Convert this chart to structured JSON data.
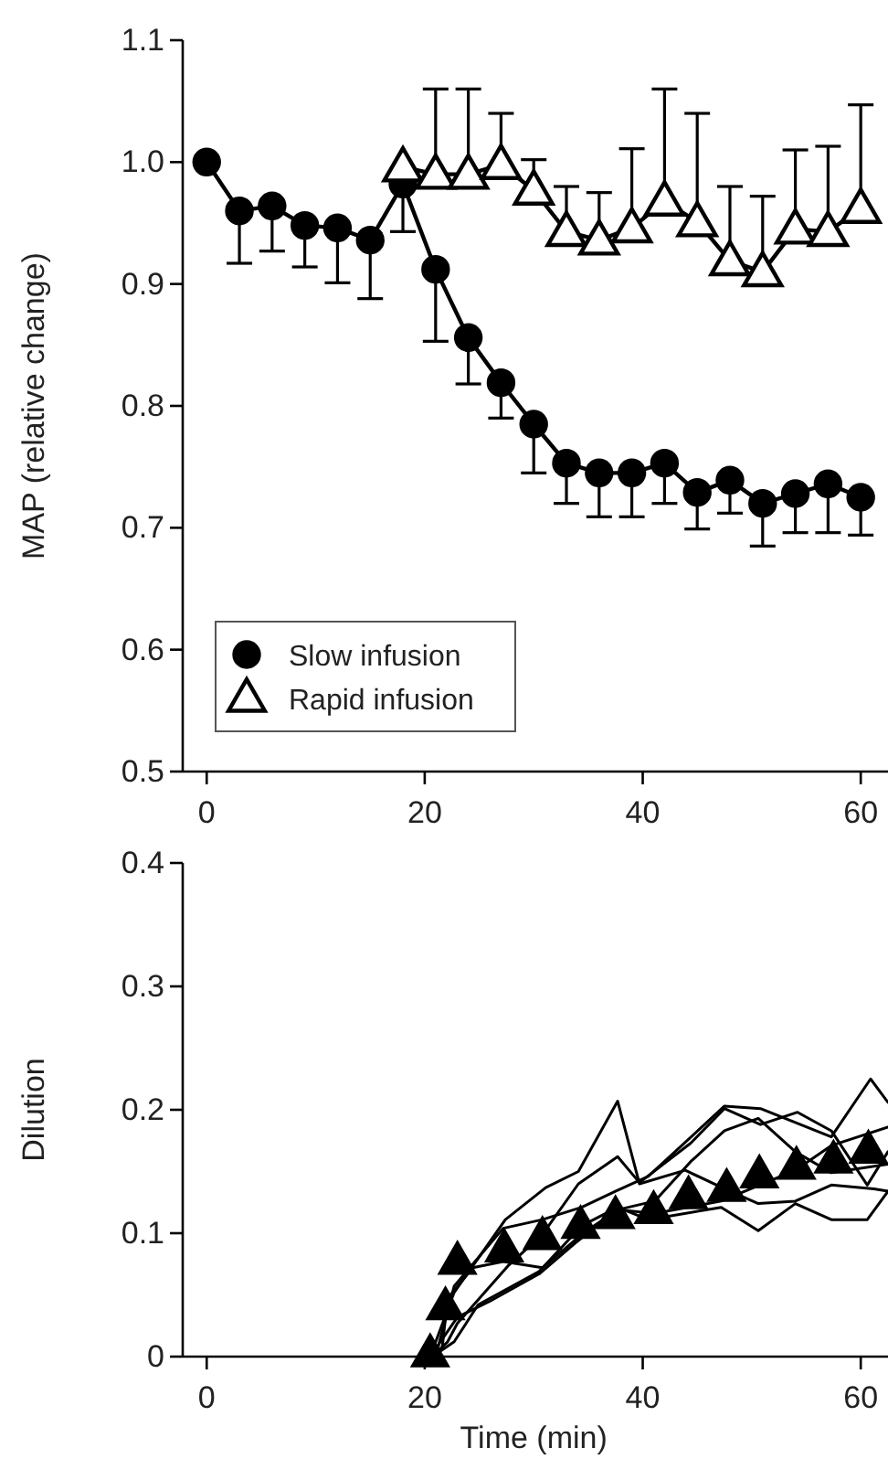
{
  "chart_data": [
    {
      "type": "line",
      "ylabel": "MAP (relative change)",
      "xlim": [
        -2.2,
        62.5
      ],
      "xticks": [
        0,
        20,
        40,
        60
      ],
      "ylim": [
        0.5,
        1.1
      ],
      "yticks": [
        {
          "value": 0.5,
          "label": "0.5"
        },
        {
          "value": 0.6,
          "label": "0.6"
        },
        {
          "value": 0.7,
          "label": "0.7"
        },
        {
          "value": 0.8,
          "label": "0.8"
        },
        {
          "value": 0.9,
          "label": "0.9"
        },
        {
          "value": 1.0,
          "label": "1.0"
        },
        {
          "value": 1.1,
          "label": "1.1"
        }
      ],
      "legend": "bottom left",
      "grid": false,
      "series": [
        {
          "name": "Slow infusion",
          "color": "#000000",
          "marker": "circle",
          "x": [
            0,
            3,
            6,
            9,
            12,
            15,
            18,
            21,
            24,
            27,
            30,
            33,
            36,
            39,
            42,
            45,
            48,
            51,
            54,
            57,
            60
          ],
          "values": [
            1.0,
            0.96,
            0.964,
            0.948,
            0.946,
            0.936,
            0.982,
            0.912,
            0.856,
            0.819,
            0.785,
            0.753,
            0.745,
            0.745,
            0.753,
            0.729,
            0.739,
            0.72,
            0.728,
            0.736,
            0.725
          ],
          "errors": [
            null,
            [
              0.917,
              0.96
            ],
            [
              0.927,
              0.964
            ],
            [
              0.914,
              0.948
            ],
            [
              0.901,
              0.946
            ],
            [
              0.888,
              0.936
            ],
            [
              0.943,
              0.982
            ],
            [
              0.853,
              0.912
            ],
            [
              0.818,
              0.856
            ],
            [
              0.79,
              0.819
            ],
            [
              0.745,
              0.785
            ],
            [
              0.72,
              0.753
            ],
            [
              0.709,
              0.745
            ],
            [
              0.709,
              0.745
            ],
            [
              0.72,
              0.753
            ],
            [
              0.699,
              0.729
            ],
            [
              0.712,
              0.739
            ],
            [
              0.685,
              0.72
            ],
            [
              0.696,
              0.728
            ],
            [
              0.696,
              0.736
            ],
            [
              0.694,
              0.725
            ]
          ]
        },
        {
          "name": "Rapid infusion",
          "color": "#000000",
          "marker": "triangle",
          "x": [
            18,
            21,
            24,
            27,
            30,
            33,
            36,
            39,
            42,
            45,
            48,
            51,
            54,
            57,
            60
          ],
          "values": [
            0.996,
            0.99,
            0.99,
            0.998,
            0.977,
            0.943,
            0.936,
            0.946,
            0.968,
            0.951,
            0.919,
            0.91,
            0.945,
            0.943,
            0.962
          ],
          "errors": [
            null,
            [
              0.99,
              1.06
            ],
            [
              0.99,
              1.06
            ],
            [
              0.998,
              1.04
            ],
            [
              0.977,
              1.002
            ],
            [
              0.943,
              0.98
            ],
            [
              0.936,
              0.975
            ],
            [
              0.946,
              1.011
            ],
            [
              0.968,
              1.06
            ],
            [
              0.951,
              1.04
            ],
            [
              0.919,
              0.98
            ],
            [
              0.91,
              0.972
            ],
            [
              0.945,
              1.01
            ],
            [
              0.943,
              1.013
            ],
            [
              0.962,
              1.047
            ]
          ]
        }
      ]
    },
    {
      "type": "line",
      "ylabel": "Dilution",
      "xlabel": "Time (min)",
      "xlim": [
        -2.2,
        62.5
      ],
      "xticks": [
        0,
        20,
        40,
        60
      ],
      "ylim": [
        0,
        0.4
      ],
      "yticks": [
        0,
        0.1,
        0.2,
        0.3,
        0.4
      ],
      "legend": false,
      "grid": false,
      "series": [
        {
          "color": "#000000",
          "marker": "none",
          "x": [
            20.5,
            22.7,
            27.4,
            31.1,
            34.1,
            37.7,
            39.7,
            43.9,
            47.5,
            50.6,
            54.0,
            57.3,
            61.2,
            62.5
          ],
          "values": [
            0,
            0.052,
            0.111,
            0.137,
            0.15,
            0.207,
            0.14,
            0.151,
            0.136,
            0.124,
            0.126,
            0.139,
            0.136,
            0.134
          ]
        },
        {
          "color": "#000000",
          "marker": "none",
          "x": [
            20.7,
            22.1,
            23.0,
            27.7,
            30.8,
            34.1,
            37.7,
            39.7,
            44.4,
            47.5,
            50.8,
            54.2,
            57.3,
            60.6,
            62.5
          ],
          "values": [
            0,
            0.012,
            0.027,
            0.074,
            0.099,
            0.14,
            0.162,
            0.141,
            0.173,
            0.201,
            0.188,
            0.198,
            0.183,
            0.139,
            0.166
          ]
        },
        {
          "color": "#000000",
          "marker": "none",
          "x": [
            21.0,
            22.7,
            27.2,
            30.8,
            34.4,
            37.5,
            40.5,
            47.5,
            50.8,
            57.3,
            60.9,
            62.5
          ],
          "values": [
            0,
            0.057,
            0.104,
            0.111,
            0.121,
            0.134,
            0.146,
            0.203,
            0.201,
            0.178,
            0.225,
            0.206
          ]
        },
        {
          "color": "#000000",
          "marker": "none",
          "x": [
            20.7,
            22.7,
            24.9,
            30.5,
            34.4,
            37.7,
            40.5,
            47.2,
            50.6,
            54.0,
            57.3,
            60.6,
            62.5
          ],
          "values": [
            0,
            0.012,
            0.042,
            0.069,
            0.106,
            0.121,
            0.111,
            0.121,
            0.102,
            0.124,
            0.111,
            0.111,
            0.134
          ]
        },
        {
          "color": "#000000",
          "marker": "none",
          "x": [
            20.5,
            23.0,
            26.0,
            30.5,
            33.8,
            37.7,
            41.1,
            44.4,
            47.5,
            50.6,
            54.0,
            57.3,
            62.5
          ],
          "values": [
            0,
            0.032,
            0.045,
            0.067,
            0.092,
            0.119,
            0.126,
            0.158,
            0.183,
            0.193,
            0.166,
            0.149,
            0.156
          ]
        },
        {
          "color": "#000000",
          "marker": "none",
          "x": [
            21.6,
            22.1,
            24.4,
            27.2,
            30.8,
            34.4,
            37.7,
            41.1,
            47.2,
            54.0,
            57.3,
            62.5
          ],
          "values": [
            0.007,
            0.047,
            0.072,
            0.077,
            0.072,
            0.099,
            0.119,
            0.116,
            0.126,
            0.151,
            0.171,
            0.186
          ]
        },
        {
          "type": "scatter",
          "color": "#000000",
          "marker": "triangle",
          "x": [
            20.5,
            21.9,
            23.0,
            27.3,
            30.8,
            34.3,
            37.5,
            41.0,
            44.2,
            47.7,
            50.7,
            54.1,
            57.5,
            60.7
          ],
          "values": [
            0.003,
            0.041,
            0.078,
            0.088,
            0.098,
            0.107,
            0.115,
            0.119,
            0.131,
            0.137,
            0.148,
            0.155,
            0.16,
            0.168
          ]
        }
      ]
    }
  ]
}
